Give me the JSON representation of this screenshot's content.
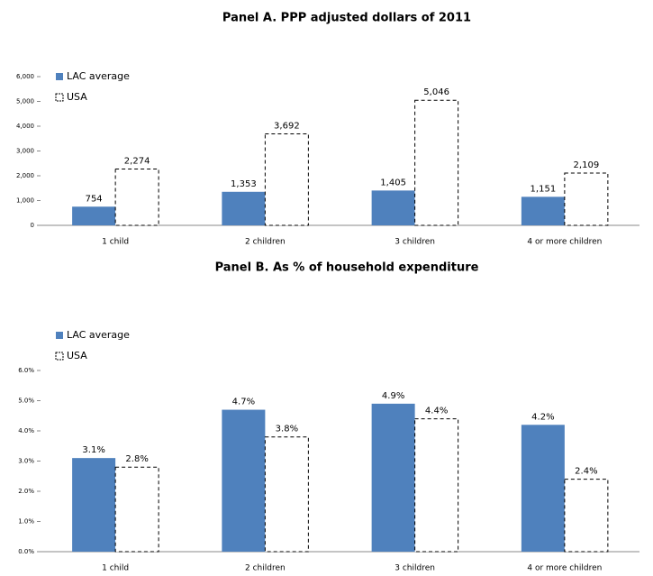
{
  "chart_data": [
    {
      "type": "bar",
      "title": "Panel A. PPP adjusted dollars of 2011",
      "categories": [
        "1 child",
        "2 children",
        "3 children",
        "4 or more children"
      ],
      "series": [
        {
          "name": "LAC average",
          "color": "#4f81bd",
          "values": [
            754,
            1353,
            1405,
            1151
          ],
          "value_labels": [
            "754",
            "1,353",
            "1,405",
            "1,151"
          ]
        },
        {
          "name": "USA",
          "color": "#ffffff",
          "values": [
            2274,
            3692,
            5046,
            2109
          ],
          "value_labels": [
            "2,274",
            "3,692",
            "5,046",
            "2,109"
          ]
        }
      ],
      "ylim": [
        0,
        6000
      ],
      "yticks": [
        0,
        {
          "value": 1000,
          "label": "1,000"
        },
        {
          "value": 2000,
          "label": "2,000"
        },
        {
          "value": 3000,
          "label": "3,000"
        },
        {
          "value": 4000,
          "label": "4,000"
        },
        {
          "value": 5000,
          "label": "5,000"
        },
        {
          "value": 6000,
          "label": "6,000"
        }
      ],
      "legend": "upper left"
    },
    {
      "type": "bar",
      "title": "Panel B.   As % of household expenditure",
      "categories": [
        "1 child",
        "2 children",
        "3 children",
        "4 or more children"
      ],
      "series": [
        {
          "name": "LAC average",
          "color": "#4f81bd",
          "values": [
            3.1,
            4.7,
            4.9,
            4.2
          ],
          "value_labels": [
            "3.1%",
            "4.7%",
            "4.9%",
            "4.2%"
          ]
        },
        {
          "name": "USA",
          "color": "#ffffff",
          "values": [
            2.8,
            3.8,
            4.4,
            2.4
          ],
          "value_labels": [
            "2.8%",
            "3.8%",
            "4.4%",
            "2.4%"
          ]
        }
      ],
      "ylim": [
        0,
        6
      ],
      "yticks": [
        {
          "value": 0,
          "label": "0.0%"
        },
        {
          "value": 1,
          "label": "1.0%"
        },
        {
          "value": 2,
          "label": "2.0%"
        },
        {
          "value": 3,
          "label": "3.0%"
        },
        {
          "value": 4,
          "label": "4.0%"
        },
        {
          "value": 5,
          "label": "5.0%"
        },
        {
          "value": 6,
          "label": "6.0%"
        }
      ],
      "legend": "upper left"
    }
  ]
}
